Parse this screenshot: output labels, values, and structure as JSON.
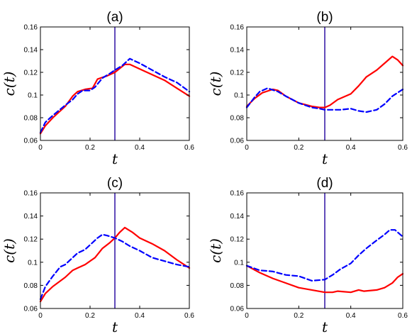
{
  "chart_data": [
    {
      "type": "line",
      "title": "(a)",
      "xlabel": "t",
      "ylabel": "c(t)",
      "xlim": [
        0,
        0.6
      ],
      "ylim": [
        0.06,
        0.16
      ],
      "xticks": [
        "0",
        "0.2",
        "0.4",
        "0.6"
      ],
      "yticks": [
        "0.06",
        "0.08",
        "0.1",
        "0.12",
        "0.14",
        "0.16"
      ],
      "vline": {
        "x": 0.3,
        "color": "#3a1fa8"
      },
      "series": [
        {
          "style": "solid",
          "color": "#ff0000",
          "x": [
            0,
            0.02,
            0.05,
            0.1,
            0.13,
            0.15,
            0.18,
            0.21,
            0.23,
            0.27,
            0.3,
            0.34,
            0.36,
            0.4,
            0.45,
            0.5,
            0.55,
            0.6
          ],
          "y": [
            0.066,
            0.073,
            0.08,
            0.09,
            0.099,
            0.103,
            0.105,
            0.106,
            0.114,
            0.117,
            0.12,
            0.127,
            0.127,
            0.123,
            0.118,
            0.113,
            0.106,
            0.099
          ]
        },
        {
          "style": "dashed",
          "color": "#0000ff",
          "x": [
            0,
            0.02,
            0.05,
            0.1,
            0.13,
            0.15,
            0.17,
            0.2,
            0.22,
            0.25,
            0.28,
            0.3,
            0.33,
            0.36,
            0.4,
            0.45,
            0.5,
            0.55,
            0.6
          ],
          "y": [
            0.067,
            0.076,
            0.082,
            0.091,
            0.096,
            0.101,
            0.104,
            0.104,
            0.107,
            0.115,
            0.119,
            0.122,
            0.126,
            0.132,
            0.128,
            0.122,
            0.116,
            0.111,
            0.103
          ]
        }
      ]
    },
    {
      "type": "line",
      "title": "(b)",
      "xlabel": "t",
      "ylabel": "c(t)",
      "xlim": [
        0,
        0.6
      ],
      "ylim": [
        0.06,
        0.16
      ],
      "xticks": [
        "0",
        "0.2",
        "0.4",
        "0.6"
      ],
      "yticks": [
        "0.06",
        "0.08",
        "0.1",
        "0.12",
        "0.14",
        "0.16"
      ],
      "vline": {
        "x": 0.3,
        "color": "#3a1fa8"
      },
      "series": [
        {
          "style": "solid",
          "color": "#ff0000",
          "x": [
            0,
            0.03,
            0.06,
            0.1,
            0.12,
            0.15,
            0.2,
            0.25,
            0.28,
            0.3,
            0.32,
            0.35,
            0.4,
            0.43,
            0.46,
            0.5,
            0.54,
            0.56,
            0.58,
            0.6
          ],
          "y": [
            0.09,
            0.097,
            0.102,
            0.105,
            0.104,
            0.099,
            0.093,
            0.09,
            0.089,
            0.089,
            0.091,
            0.096,
            0.101,
            0.108,
            0.116,
            0.122,
            0.13,
            0.134,
            0.131,
            0.126
          ]
        },
        {
          "style": "dashed",
          "color": "#0000ff",
          "x": [
            0,
            0.03,
            0.05,
            0.08,
            0.12,
            0.15,
            0.2,
            0.25,
            0.28,
            0.3,
            0.33,
            0.36,
            0.4,
            0.43,
            0.46,
            0.5,
            0.53,
            0.56,
            0.6
          ],
          "y": [
            0.089,
            0.098,
            0.103,
            0.106,
            0.103,
            0.099,
            0.093,
            0.089,
            0.088,
            0.087,
            0.087,
            0.087,
            0.088,
            0.086,
            0.085,
            0.087,
            0.092,
            0.099,
            0.105
          ]
        }
      ]
    },
    {
      "type": "line",
      "title": "(c)",
      "xlabel": "t",
      "ylabel": "c(t)",
      "xlim": [
        0,
        0.6
      ],
      "ylim": [
        0.06,
        0.16
      ],
      "xticks": [
        "0",
        "0.2",
        "0.4",
        "0.6"
      ],
      "yticks": [
        "0.06",
        "0.08",
        "0.1",
        "0.12",
        "0.14",
        "0.16"
      ],
      "vline": {
        "x": 0.3,
        "color": "#3a1fa8"
      },
      "series": [
        {
          "style": "solid",
          "color": "#ff0000",
          "x": [
            0,
            0.02,
            0.05,
            0.1,
            0.13,
            0.15,
            0.18,
            0.22,
            0.25,
            0.28,
            0.3,
            0.32,
            0.34,
            0.37,
            0.4,
            0.45,
            0.5,
            0.55,
            0.6
          ],
          "y": [
            0.066,
            0.073,
            0.079,
            0.087,
            0.093,
            0.095,
            0.098,
            0.104,
            0.112,
            0.117,
            0.121,
            0.126,
            0.13,
            0.126,
            0.121,
            0.116,
            0.11,
            0.102,
            0.095
          ]
        },
        {
          "style": "dashed",
          "color": "#0000ff",
          "x": [
            0,
            0.02,
            0.05,
            0.08,
            0.1,
            0.15,
            0.18,
            0.2,
            0.23,
            0.25,
            0.27,
            0.3,
            0.33,
            0.36,
            0.4,
            0.45,
            0.5,
            0.55,
            0.6
          ],
          "y": [
            0.068,
            0.079,
            0.088,
            0.096,
            0.098,
            0.108,
            0.111,
            0.115,
            0.121,
            0.124,
            0.123,
            0.121,
            0.118,
            0.114,
            0.11,
            0.104,
            0.101,
            0.098,
            0.096
          ]
        }
      ]
    },
    {
      "type": "line",
      "title": "(d)",
      "xlabel": "t",
      "ylabel": "c(t)",
      "xlim": [
        0,
        0.6
      ],
      "ylim": [
        0.06,
        0.16
      ],
      "xticks": [
        "0",
        "0.2",
        "0.4",
        "0.6"
      ],
      "yticks": [
        "0.06",
        "0.08",
        "0.1",
        "0.12",
        "0.14",
        "0.16"
      ],
      "vline": {
        "x": 0.3,
        "color": "#3a1fa8"
      },
      "series": [
        {
          "style": "solid",
          "color": "#ff0000",
          "x": [
            0,
            0.05,
            0.1,
            0.15,
            0.2,
            0.25,
            0.3,
            0.33,
            0.35,
            0.4,
            0.43,
            0.45,
            0.5,
            0.53,
            0.56,
            0.58,
            0.6
          ],
          "y": [
            0.097,
            0.091,
            0.086,
            0.082,
            0.078,
            0.076,
            0.074,
            0.074,
            0.075,
            0.074,
            0.076,
            0.075,
            0.076,
            0.078,
            0.082,
            0.087,
            0.09
          ]
        },
        {
          "style": "dashed",
          "color": "#0000ff",
          "x": [
            0,
            0.05,
            0.1,
            0.15,
            0.2,
            0.25,
            0.3,
            0.33,
            0.36,
            0.4,
            0.43,
            0.46,
            0.5,
            0.53,
            0.55,
            0.57,
            0.6
          ],
          "y": [
            0.097,
            0.093,
            0.092,
            0.089,
            0.088,
            0.084,
            0.085,
            0.089,
            0.094,
            0.099,
            0.106,
            0.112,
            0.119,
            0.124,
            0.128,
            0.128,
            0.122
          ]
        }
      ]
    }
  ]
}
